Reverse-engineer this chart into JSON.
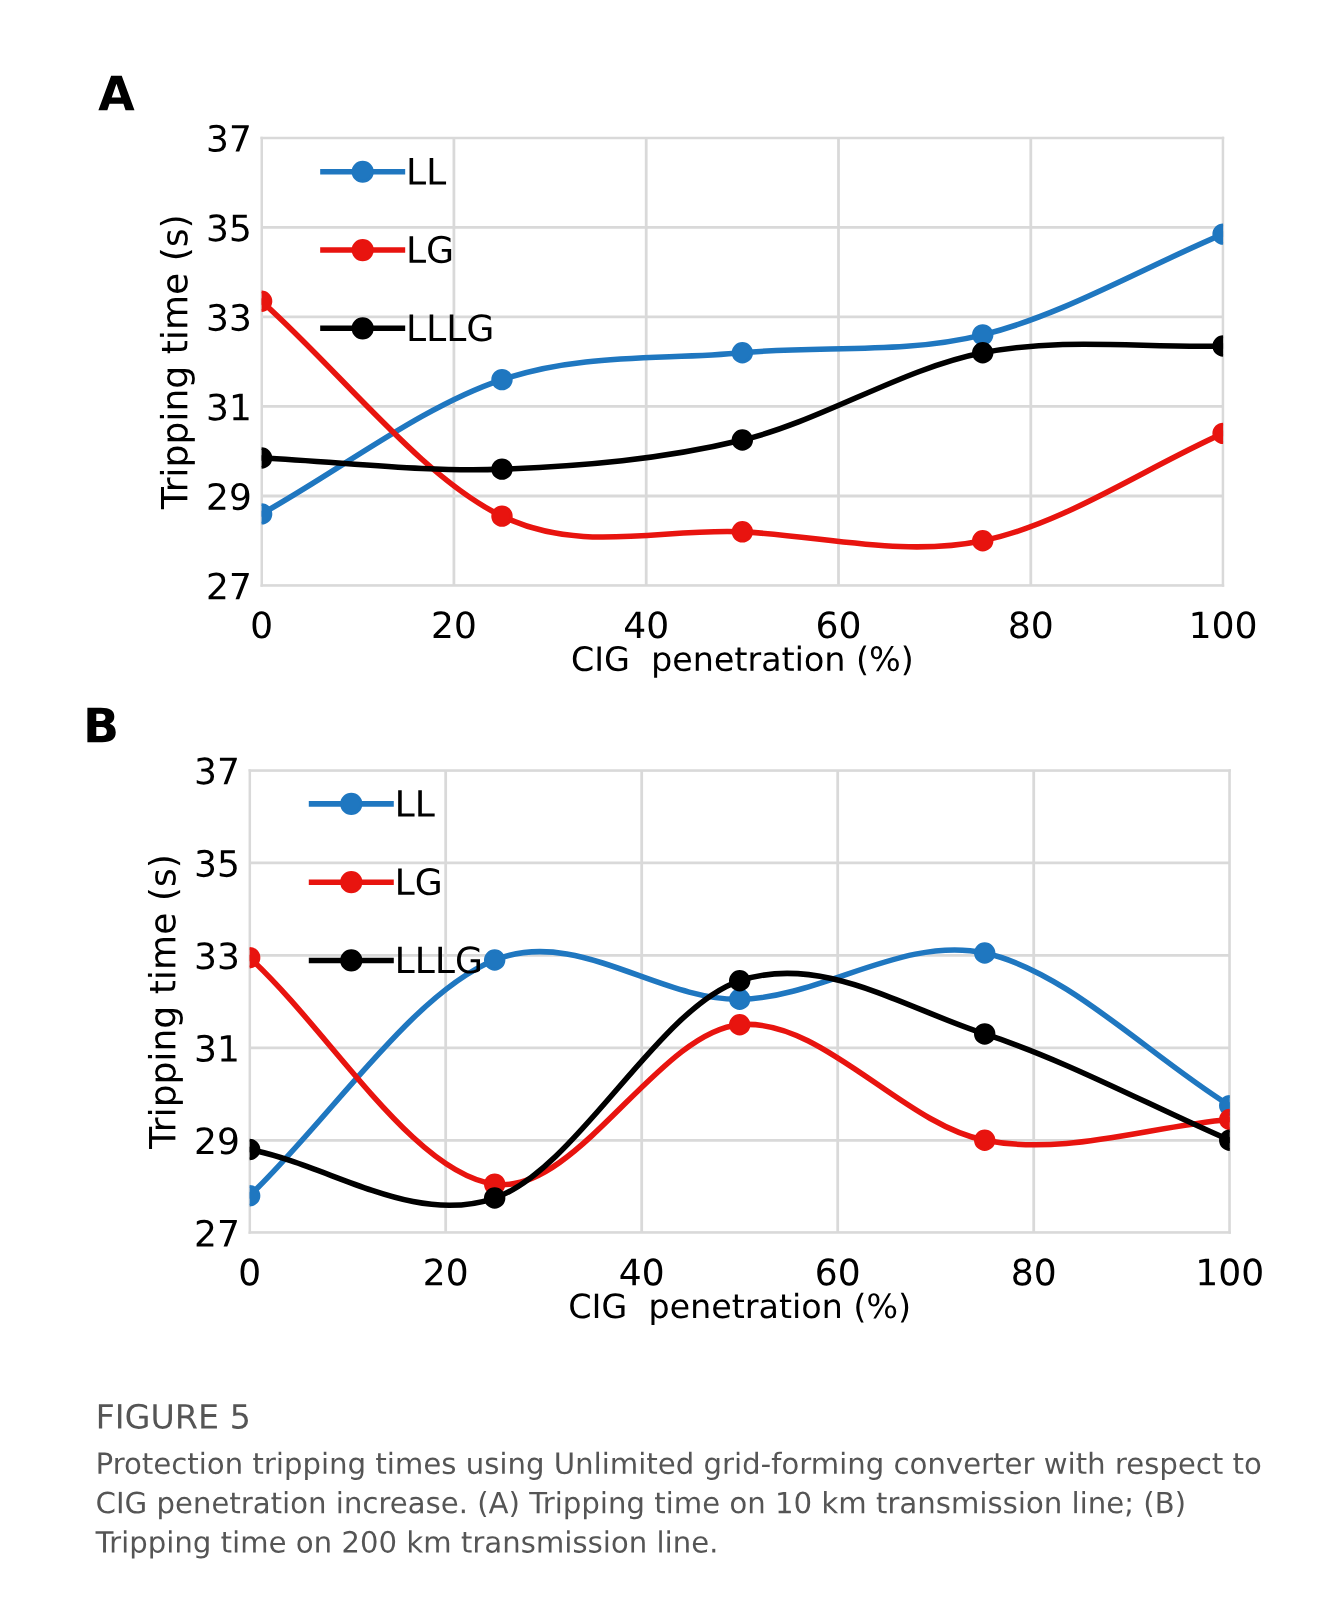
{
  "chart_data": [
    {
      "type": "line",
      "title": "A",
      "xlabel": "CIG  penetration (%)",
      "ylabel": "Tripping time (s)",
      "x": [
        0,
        25,
        50,
        75,
        100
      ],
      "series": [
        {
          "name": "LL",
          "color": "#1f77c0",
          "values": [
            28.6,
            31.6,
            32.2,
            32.6,
            34.85
          ]
        },
        {
          "name": "LG",
          "color": "#e8140f",
          "values": [
            33.35,
            28.55,
            28.2,
            28.0,
            30.4
          ]
        },
        {
          "name": "LLLG",
          "color": "#000000",
          "values": [
            29.85,
            29.6,
            30.25,
            32.2,
            32.35
          ]
        }
      ],
      "xlim": [
        0,
        100
      ],
      "xticks": [
        0,
        20,
        40,
        60,
        80,
        100
      ],
      "ylim": [
        27,
        37
      ],
      "yticks": [
        27,
        29,
        31,
        33,
        35,
        37
      ],
      "grid": true,
      "legend": "top left",
      "marker": "circle",
      "line_style": "solid"
    },
    {
      "type": "line",
      "title": "B",
      "xlabel": "CIG  penetration (%)",
      "ylabel": "Tripping time (s)",
      "x": [
        0,
        25,
        50,
        75,
        100
      ],
      "series": [
        {
          "name": "LL",
          "color": "#1f77c0",
          "values": [
            27.8,
            32.9,
            32.05,
            33.05,
            29.75
          ]
        },
        {
          "name": "LG",
          "color": "#e8140f",
          "values": [
            32.95,
            28.05,
            31.5,
            29.0,
            29.45
          ]
        },
        {
          "name": "LLLG",
          "color": "#000000",
          "values": [
            28.8,
            27.75,
            32.45,
            31.3,
            29.0
          ]
        }
      ],
      "xlim": [
        0,
        100
      ],
      "xticks": [
        0,
        20,
        40,
        60,
        80,
        100
      ],
      "ylim": [
        27,
        37
      ],
      "yticks": [
        27,
        29,
        31,
        33,
        35,
        37
      ],
      "grid": true,
      "legend": "top left",
      "marker": "circle",
      "line_style": "solid",
      "annotations": [
        "FIGURE 5",
        "Protection tripping times using Unlimited grid-forming converter with respect to CIG penetration increase. (A) Tripping time on 10 km transmission line; (B) Tripping time on 200 km transmission line."
      ]
    }
  ]
}
